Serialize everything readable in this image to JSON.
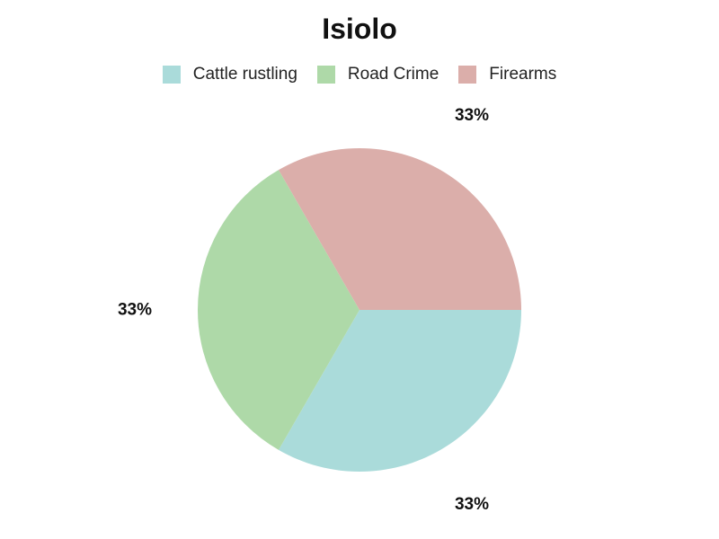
{
  "chart_data": {
    "type": "pie",
    "title": "Isiolo",
    "legend_position": "top-center",
    "slices": [
      {
        "name": "Cattle rustling",
        "value": 33,
        "label": "33%",
        "color": "#aadbda"
      },
      {
        "name": "Road Crime",
        "value": 33,
        "label": "33%",
        "color": "#aed9a8"
      },
      {
        "name": "Firearms",
        "value": 33,
        "label": "33%",
        "color": "#dbaeaa"
      }
    ]
  }
}
